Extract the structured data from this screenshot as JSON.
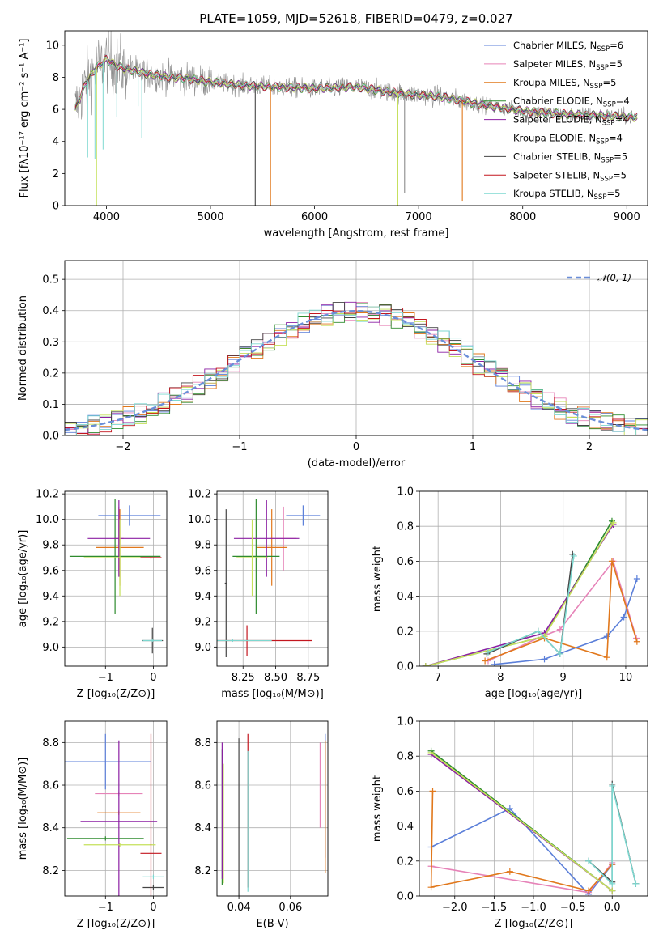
{
  "title": "PLATE=1059, MJD=52618, FIBERID=0479, z=0.027",
  "colors": {
    "chabrier_miles": "#5b7fd9",
    "salpeter_miles": "#e683b8",
    "kroupa_miles": "#e1781c",
    "chabrier_elodie": "#2e8b2e",
    "salpeter_elodie": "#8b1fa3",
    "kroupa_elodie": "#c5e05a",
    "chabrier_stelib": "#444444",
    "salpeter_stelib": "#c3161f",
    "kroupa_stelib": "#7dd8d0",
    "data": "#8c8c8c",
    "normal_curve": "#6a8ed8",
    "grid": "#b0b0b0"
  },
  "legend": [
    {
      "key": "chabrier_miles",
      "text": "Chabrier MILES, N",
      "sub": "SSP",
      "tail": "=6"
    },
    {
      "key": "salpeter_miles",
      "text": "Salpeter MILES, N",
      "sub": "SSP",
      "tail": "=5"
    },
    {
      "key": "kroupa_miles",
      "text": "Kroupa MILES, N",
      "sub": "SSP",
      "tail": "=5"
    },
    {
      "key": "chabrier_elodie",
      "text": "Chabrier ELODIE, N",
      "sub": "SSP",
      "tail": "=4"
    },
    {
      "key": "salpeter_elodie",
      "text": "Salpeter ELODIE, N",
      "sub": "SSP",
      "tail": "=4"
    },
    {
      "key": "kroupa_elodie",
      "text": "Kroupa ELODIE, N",
      "sub": "SSP",
      "tail": "=4"
    },
    {
      "key": "chabrier_stelib",
      "text": "Chabrier STELIB, N",
      "sub": "SSP",
      "tail": "=5"
    },
    {
      "key": "salpeter_stelib",
      "text": "Salpeter STELIB, N",
      "sub": "SSP",
      "tail": "=5"
    },
    {
      "key": "kroupa_stelib",
      "text": "Kroupa STELIB, N",
      "sub": "SSP",
      "tail": "=5"
    }
  ],
  "chart_data": [
    {
      "type": "line",
      "id": "spectrum",
      "xlabel": "wavelength [Angstrom, rest frame]",
      "ylabel": "Flux [fλ10⁻¹⁷ erg cm⁻² s⁻¹ A⁻¹]",
      "xlim": [
        3600,
        9200
      ],
      "ylim": [
        0,
        10.9
      ],
      "xticks": [
        4000,
        5000,
        6000,
        7000,
        8000,
        9000
      ],
      "yticks": [
        0,
        2,
        4,
        6,
        8,
        10
      ],
      "continuum": {
        "x": [
          3700,
          3800,
          3900,
          4000,
          4100,
          4200,
          4400,
          4600,
          4800,
          5000,
          5300,
          5600,
          6000,
          6400,
          6800,
          7200,
          7600,
          8000,
          8400,
          8800,
          9100
        ],
        "y": [
          6.0,
          7.6,
          8.6,
          9.1,
          8.7,
          8.5,
          8.2,
          8.0,
          7.9,
          7.7,
          7.5,
          7.4,
          7.3,
          7.4,
          7.0,
          6.8,
          6.3,
          5.9,
          5.7,
          5.6,
          5.5
        ]
      },
      "spikes": [
        {
          "x": 3905,
          "y": 0,
          "series": "kroupa_elodie"
        },
        {
          "x": 5430,
          "y": 0,
          "series": "chabrier_stelib"
        },
        {
          "x": 5577,
          "y": 0,
          "series": "kroupa_miles"
        },
        {
          "x": 6800,
          "y": 0,
          "series": "kroupa_elodie"
        },
        {
          "x": 6865,
          "y": 0.8,
          "series": "data"
        },
        {
          "x": 7420,
          "y": 0.3,
          "series": "kroupa_miles"
        }
      ]
    },
    {
      "type": "line",
      "id": "residuals",
      "xlabel": "(data-model)/error",
      "ylabel": "Normed distribution",
      "xlim": [
        -2.5,
        2.5
      ],
      "ylim": [
        0,
        0.56
      ],
      "xticks": [
        -2,
        -1,
        0,
        1,
        2
      ],
      "yticks": [
        0.0,
        0.1,
        0.2,
        0.3,
        0.4,
        0.5
      ],
      "legend": "𝒩(0, 1)",
      "bin_width": 0.1,
      "hist_range": [
        -2.5,
        2.5
      ]
    },
    {
      "type": "scatter",
      "id": "z_age",
      "xlabel": "Z [log₁₀(Z/Z⊙)]",
      "ylabel": "age  [log₁₀(age/yr)]",
      "xlim": [
        -1.85,
        0.28
      ],
      "ylim": [
        8.85,
        10.22
      ],
      "xticks": [
        -1,
        0
      ],
      "yticks": [
        9.0,
        9.2,
        9.4,
        9.6,
        9.8,
        10.0,
        10.2
      ],
      "points": [
        {
          "series": "chabrier_miles",
          "x": -0.5,
          "xerr": 0.65,
          "y": 10.03,
          "yerr": 0.08
        },
        {
          "series": "salpeter_miles",
          "x": -0.72,
          "xerr": 0.1,
          "y": 9.85,
          "yerr": 0.25
        },
        {
          "series": "kroupa_miles",
          "x": -0.7,
          "xerr": 0.5,
          "y": 9.78,
          "yerr": 0.3
        },
        {
          "series": "chabrier_elodie",
          "x": -0.8,
          "xerr": 0.95,
          "y": 9.71,
          "yerr": 0.45
        },
        {
          "series": "salpeter_elodie",
          "x": -0.72,
          "xerr": 0.65,
          "y": 9.85,
          "yerr": 0.3
        },
        {
          "series": "kroupa_elodie",
          "x": -0.7,
          "xerr": 0.75,
          "y": 9.7,
          "yerr": 0.3
        },
        {
          "series": "chabrier_stelib",
          "x": -0.02,
          "xerr": 0.22,
          "y": 9.05,
          "yerr": 0.1
        },
        {
          "series": "salpeter_stelib",
          "x": -0.05,
          "xerr": 0.22,
          "y": 9.7,
          "yerr": 0.01
        },
        {
          "series": "kroupa_stelib",
          "x": -0.02,
          "xerr": 0.2,
          "y": 9.05,
          "yerr": 0.01
        }
      ]
    },
    {
      "type": "scatter",
      "id": "mass_age",
      "xlabel": "mass [log₁₀(M/M⊙)]",
      "ylabel": "",
      "xlim": [
        8.05,
        8.9
      ],
      "ylim": [
        8.85,
        10.22
      ],
      "xticks": [
        8.25,
        8.5,
        8.75
      ],
      "yticks": [
        9.0,
        9.2,
        9.4,
        9.6,
        9.8,
        10.0,
        10.2
      ],
      "points": [
        {
          "series": "chabrier_miles",
          "x": 8.71,
          "xerr": 0.13,
          "y": 10.03,
          "yerr": 0.08
        },
        {
          "series": "salpeter_miles",
          "x": 8.56,
          "xerr": 0.1,
          "y": 9.85,
          "yerr": 0.25
        },
        {
          "series": "kroupa_miles",
          "x": 8.47,
          "xerr": 0.12,
          "y": 9.78,
          "yerr": 0.3
        },
        {
          "series": "chabrier_elodie",
          "x": 8.35,
          "xerr": 0.18,
          "y": 9.71,
          "yerr": 0.45
        },
        {
          "series": "salpeter_elodie",
          "x": 8.43,
          "xerr": 0.25,
          "y": 9.85,
          "yerr": 0.3
        },
        {
          "series": "kroupa_elodie",
          "x": 8.32,
          "xerr": 0.12,
          "y": 9.7,
          "yerr": 0.3
        },
        {
          "series": "chabrier_stelib",
          "x": 8.12,
          "xerr": 0.01,
          "y": 9.5,
          "yerr": 0.58
        },
        {
          "series": "salpeter_stelib",
          "x": 8.28,
          "xerr": 0.5,
          "y": 9.05,
          "yerr": 0.12
        },
        {
          "series": "kroupa_stelib",
          "x": 8.17,
          "xerr": 0.3,
          "y": 9.05,
          "yerr": 0.01
        }
      ]
    },
    {
      "type": "line",
      "id": "age_weight",
      "xlabel": "age  [log₁₀(age/yr)]",
      "ylabel": "mass weight",
      "xlim": [
        6.7,
        10.35
      ],
      "ylim": [
        0,
        1.0
      ],
      "xticks": [
        7,
        8,
        9,
        10
      ],
      "yticks": [
        0.0,
        0.2,
        0.4,
        0.6,
        0.8,
        1.0
      ],
      "series": [
        {
          "key": "chabrier_miles",
          "x": [
            7.9,
            8.7,
            9.7,
            9.97,
            10.18
          ],
          "y": [
            0.01,
            0.04,
            0.17,
            0.28,
            0.5
          ]
        },
        {
          "key": "salpeter_miles",
          "x": [
            7.8,
            8.6,
            8.95,
            9.8,
            10.17
          ],
          "y": [
            0.03,
            0.16,
            0.21,
            0.6,
            0.16
          ]
        },
        {
          "key": "kroupa_miles",
          "x": [
            7.75,
            8.7,
            9.7,
            9.78,
            10.18
          ],
          "y": [
            0.03,
            0.16,
            0.05,
            0.6,
            0.14
          ]
        },
        {
          "key": "chabrier_elodie",
          "x": [
            6.8,
            8.7,
            9.78
          ],
          "y": [
            0.0,
            0.17,
            0.83
          ]
        },
        {
          "key": "salpeter_elodie",
          "x": [
            6.8,
            8.7,
            9.8
          ],
          "y": [
            0.0,
            0.19,
            0.81
          ]
        },
        {
          "key": "kroupa_elodie",
          "x": [
            6.8,
            8.7,
            9.8
          ],
          "y": [
            0.0,
            0.17,
            0.82
          ]
        },
        {
          "key": "chabrier_stelib",
          "x": [
            7.78,
            8.6,
            8.95,
            9.15
          ],
          "y": [
            0.07,
            0.2,
            0.07,
            0.64
          ]
        },
        {
          "key": "kroupa_stelib",
          "x": [
            7.8,
            8.6,
            8.95,
            9.17
          ],
          "y": [
            0.08,
            0.2,
            0.07,
            0.63
          ]
        }
      ]
    },
    {
      "type": "scatter",
      "id": "z_mass",
      "xlabel": "Z [log₁₀(Z/Z⊙)]",
      "ylabel": "mass [log₁₀(M/M⊙)]",
      "xlim": [
        -1.85,
        0.28
      ],
      "ylim": [
        8.08,
        8.9
      ],
      "xticks": [
        -1,
        0
      ],
      "yticks": [
        8.2,
        8.4,
        8.6,
        8.8
      ],
      "points": [
        {
          "series": "chabrier_miles",
          "x": -1.0,
          "xerr": 0.95,
          "y": 8.71,
          "yerr": 0.13
        },
        {
          "series": "salpeter_miles",
          "x": -0.72,
          "xerr": 0.5,
          "y": 8.56,
          "yerr": 0.01
        },
        {
          "series": "kroupa_miles",
          "x": -0.72,
          "xerr": 0.45,
          "y": 8.47,
          "yerr": 0.01
        },
        {
          "series": "chabrier_elodie",
          "x": -1.0,
          "xerr": 0.8,
          "y": 8.35,
          "yerr": 0.01
        },
        {
          "series": "salpeter_elodie",
          "x": -0.72,
          "xerr": 0.8,
          "y": 8.43,
          "yerr": 0.38
        },
        {
          "series": "kroupa_elodie",
          "x": -0.7,
          "xerr": 0.75,
          "y": 8.32,
          "yerr": 0.01
        },
        {
          "series": "chabrier_stelib",
          "x": 0.0,
          "xerr": 0.22,
          "y": 8.12,
          "yerr": 0.01
        },
        {
          "series": "salpeter_stelib",
          "x": -0.05,
          "xerr": 0.22,
          "y": 8.28,
          "yerr": 0.56
        },
        {
          "series": "kroupa_stelib",
          "x": 0.0,
          "xerr": 0.22,
          "y": 8.17,
          "yerr": 0.01
        }
      ]
    },
    {
      "type": "scatter",
      "id": "ebv_mass",
      "xlabel": "E(B-V)",
      "ylabel": "",
      "xlim": [
        0.0315,
        0.0745
      ],
      "ylim": [
        8.08,
        8.9
      ],
      "xticks": [
        0.04,
        0.06
      ],
      "yticks": [
        8.2,
        8.4,
        8.6,
        8.8
      ],
      "points": [
        {
          "series": "chabrier_miles",
          "x": 0.0735,
          "y": 8.55,
          "yerr": 0.29
        },
        {
          "series": "salpeter_miles",
          "x": 0.0715,
          "y": 8.6,
          "yerr": 0.2
        },
        {
          "series": "kroupa_miles",
          "x": 0.0735,
          "y": 8.5,
          "yerr": 0.31
        },
        {
          "series": "chabrier_elodie",
          "x": 0.0335,
          "y": 8.45,
          "yerr": 0.32
        },
        {
          "series": "salpeter_elodie",
          "x": 0.0335,
          "y": 8.48,
          "yerr": 0.32
        },
        {
          "series": "kroupa_elodie",
          "x": 0.034,
          "y": 8.42,
          "yerr": 0.28
        },
        {
          "series": "chabrier_stelib",
          "x": 0.04,
          "y": 8.45,
          "yerr": 0.37
        },
        {
          "series": "salpeter_stelib",
          "x": 0.0435,
          "y": 8.48,
          "yerr": 0.36
        },
        {
          "series": "kroupa_stelib",
          "x": 0.0435,
          "y": 8.43,
          "yerr": 0.33
        }
      ]
    },
    {
      "type": "line",
      "id": "z_weight",
      "xlabel": "Z [log₁₀(Z/Z⊙)]",
      "ylabel": "mass weight",
      "xlim": [
        -2.45,
        0.45
      ],
      "ylim": [
        0,
        1.0
      ],
      "xticks": [
        -2.0,
        -1.5,
        -1.0,
        -0.5,
        0.0
      ],
      "yticks": [
        0.0,
        0.2,
        0.4,
        0.6,
        0.8,
        1.0
      ],
      "series": [
        {
          "key": "chabrier_miles",
          "x": [
            -2.3,
            -1.3,
            -0.3,
            0.0
          ],
          "y": [
            0.28,
            0.5,
            0.01,
            0.18
          ]
        },
        {
          "key": "salpeter_miles",
          "x": [
            -2.3,
            -0.3,
            0.0
          ],
          "y": [
            0.17,
            0.02,
            0.19
          ]
        },
        {
          "key": "kroupa_miles",
          "x": [
            -2.28,
            -2.3,
            -1.3,
            -0.3,
            0.0
          ],
          "y": [
            0.6,
            0.05,
            0.14,
            0.03,
            0.18
          ]
        },
        {
          "key": "chabrier_elodie",
          "x": [
            -2.3,
            0.0
          ],
          "y": [
            0.83,
            0.03
          ]
        },
        {
          "key": "salpeter_elodie",
          "x": [
            -2.3,
            0.0
          ],
          "y": [
            0.81,
            0.03
          ]
        },
        {
          "key": "kroupa_elodie",
          "x": [
            -2.3,
            0.0
          ],
          "y": [
            0.82,
            0.03
          ]
        },
        {
          "key": "chabrier_stelib",
          "x": [
            -0.3,
            0.0,
            0.0,
            0.3
          ],
          "y": [
            0.2,
            0.08,
            0.64,
            0.07
          ]
        },
        {
          "key": "kroupa_stelib",
          "x": [
            -0.3,
            0.0,
            0.0,
            0.3
          ],
          "y": [
            0.2,
            0.07,
            0.63,
            0.07
          ]
        }
      ]
    }
  ]
}
